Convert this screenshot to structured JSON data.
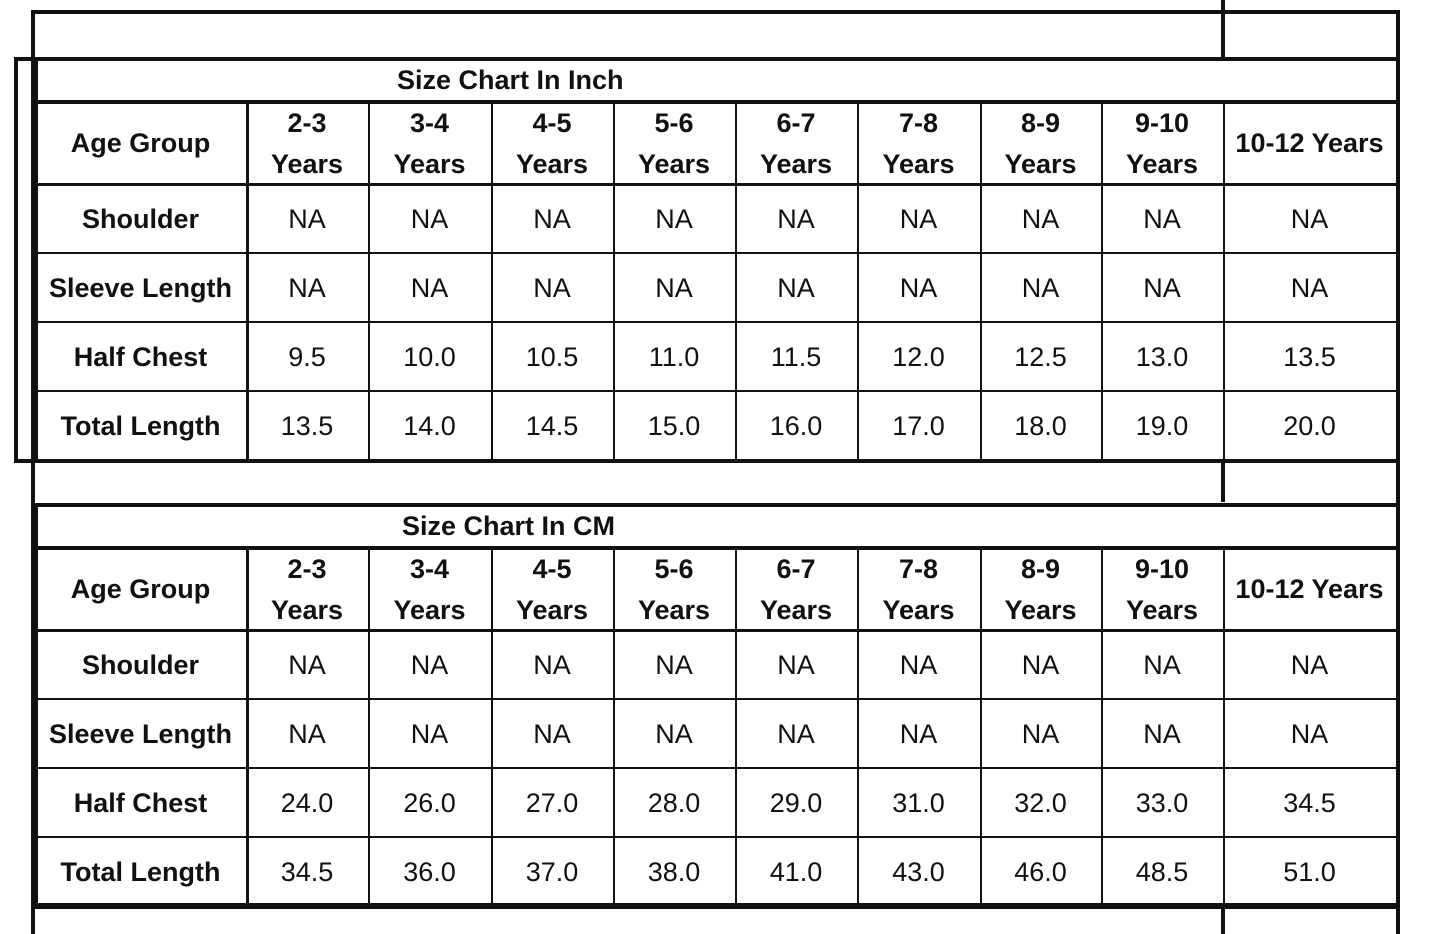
{
  "tables": [
    {
      "title": "Size Chart In Inch",
      "header_label": "Age Group",
      "columns": [
        "2-3\nYears",
        "3-4\nYears",
        "4-5\nYears",
        "5-6\nYears",
        "6-7\nYears",
        "7-8\nYears",
        "8-9\nYears",
        "9-10\nYears",
        "10-12 Years"
      ],
      "rows": [
        {
          "label": "Shoulder",
          "values": [
            "NA",
            "NA",
            "NA",
            "NA",
            "NA",
            "NA",
            "NA",
            "NA",
            "NA"
          ]
        },
        {
          "label": "Sleeve Length",
          "values": [
            "NA",
            "NA",
            "NA",
            "NA",
            "NA",
            "NA",
            "NA",
            "NA",
            "NA"
          ]
        },
        {
          "label": "Half Chest",
          "values": [
            "9.5",
            "10.0",
            "10.5",
            "11.0",
            "11.5",
            "12.0",
            "12.5",
            "13.0",
            "13.5"
          ]
        },
        {
          "label": "Total Length",
          "values": [
            "13.5",
            "14.0",
            "14.5",
            "15.0",
            "16.0",
            "17.0",
            "18.0",
            "19.0",
            "20.0"
          ]
        }
      ]
    },
    {
      "title": "Size Chart In CM",
      "header_label": "Age Group",
      "columns": [
        "2-3\nYears",
        "3-4\nYears",
        "4-5\nYears",
        "5-6\nYears",
        "6-7\nYears",
        "7-8\nYears",
        "8-9\nYears",
        "9-10\nYears",
        "10-12 Years"
      ],
      "rows": [
        {
          "label": "Shoulder",
          "values": [
            "NA",
            "NA",
            "NA",
            "NA",
            "NA",
            "NA",
            "NA",
            "NA",
            "NA"
          ]
        },
        {
          "label": "Sleeve Length",
          "values": [
            "NA",
            "NA",
            "NA",
            "NA",
            "NA",
            "NA",
            "NA",
            "NA",
            "NA"
          ]
        },
        {
          "label": "Half Chest",
          "values": [
            "24.0",
            "26.0",
            "27.0",
            "28.0",
            "29.0",
            "31.0",
            "32.0",
            "33.0",
            "34.5"
          ]
        },
        {
          "label": "Total Length",
          "values": [
            "34.5",
            "36.0",
            "37.0",
            "38.0",
            "41.0",
            "43.0",
            "46.0",
            "48.5",
            "51.0"
          ]
        }
      ]
    }
  ]
}
